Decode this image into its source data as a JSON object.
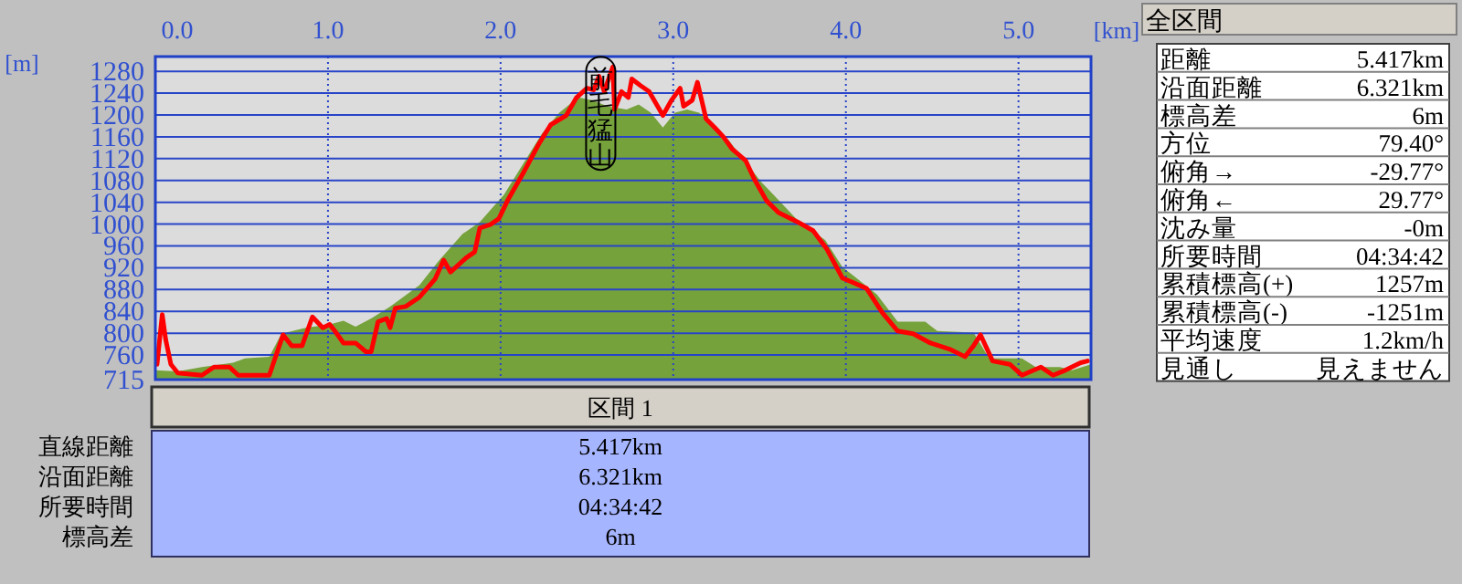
{
  "chart_data": [
    {
      "type": "area",
      "xlabel": "[km]",
      "ylabel": "[m]",
      "xlim": [
        0,
        5.42
      ],
      "ylim": [
        715,
        1307
      ],
      "xticks": [
        {
          "value": 0,
          "label": "0.0"
        },
        {
          "value": 1,
          "label": "1.0"
        },
        {
          "value": 2,
          "label": "2.0"
        },
        {
          "value": 3,
          "label": "3.0"
        },
        {
          "value": 4,
          "label": "4.0"
        },
        {
          "value": 5,
          "label": "5.0"
        }
      ],
      "yticks": [
        715,
        760,
        800,
        840,
        880,
        920,
        960,
        1000,
        1040,
        1080,
        1120,
        1160,
        1200,
        1240,
        1280
      ],
      "grid": true,
      "annotations": [
        {
          "text": "前毛猛山",
          "x": 2.58,
          "y": 1203
        }
      ],
      "series": [
        {
          "type": "area",
          "color": "#76a23c",
          "x": [
            0,
            0.13,
            0.27,
            0.45,
            0.52,
            0.66,
            0.73,
            0.87,
            1.01,
            1.09,
            1.16,
            1.25,
            1.36,
            1.53,
            1.64,
            1.78,
            1.88,
            2.02,
            2.13,
            2.24,
            2.34,
            2.45,
            2.53,
            2.62,
            2.73,
            2.8,
            2.87,
            2.94,
            3.01,
            3.08,
            3.15,
            3.22,
            3.32,
            3.51,
            3.58,
            3.73,
            3.88,
            3.98,
            4.05,
            4.18,
            4.3,
            4.46,
            4.53,
            4.74,
            4.83,
            5.02,
            5.1,
            5.24,
            5.31,
            5.42
          ],
          "values": [
            732,
            730,
            738,
            746,
            754,
            757,
            799,
            810,
            816,
            823,
            812,
            827,
            849,
            888,
            932,
            982,
            1004,
            1054,
            1110,
            1166,
            1204,
            1232,
            1227,
            1216,
            1210,
            1219,
            1204,
            1177,
            1204,
            1210,
            1204,
            1182,
            1154,
            1077,
            1054,
            1004,
            971,
            921,
            904,
            871,
            821,
            821,
            804,
            801,
            754,
            754,
            738,
            738,
            732,
            743
          ]
        },
        {
          "type": "line",
          "color": "#ff0000",
          "x": [
            0.01,
            0.04,
            0.06,
            0.09,
            0.13,
            0.27,
            0.34,
            0.43,
            0.48,
            0.66,
            0.74,
            0.79,
            0.85,
            0.91,
            0.97,
            1.01,
            1.04,
            1.09,
            1.16,
            1.22,
            1.25,
            1.29,
            1.34,
            1.36,
            1.39,
            1.45,
            1.53,
            1.62,
            1.67,
            1.71,
            1.8,
            1.85,
            1.88,
            1.94,
            1.99,
            2.04,
            2.13,
            2.22,
            2.29,
            2.38,
            2.44,
            2.5,
            2.54,
            2.57,
            2.6,
            2.65,
            2.66,
            2.7,
            2.74,
            2.76,
            2.81,
            2.86,
            2.94,
            2.99,
            3.04,
            3.06,
            3.11,
            3.14,
            3.19,
            3.24,
            3.29,
            3.34,
            3.42,
            3.47,
            3.54,
            3.61,
            3.72,
            3.81,
            3.89,
            3.98,
            4.04,
            4.12,
            4.21,
            4.3,
            4.39,
            4.49,
            4.6,
            4.69,
            4.74,
            4.78,
            4.85,
            4.95,
            5.02,
            5.13,
            5.2,
            5.27,
            5.36,
            5.4
          ],
          "values": [
            743,
            834,
            788,
            743,
            727,
            723,
            738,
            738,
            723,
            723,
            797,
            777,
            777,
            830,
            810,
            816,
            804,
            782,
            782,
            766,
            766,
            821,
            827,
            810,
            846,
            849,
            866,
            899,
            934,
            912,
            938,
            949,
            993,
            999,
            1010,
            1043,
            1093,
            1146,
            1182,
            1199,
            1232,
            1249,
            1246,
            1271,
            1243,
            1288,
            1210,
            1243,
            1232,
            1266,
            1254,
            1243,
            1199,
            1227,
            1249,
            1216,
            1227,
            1260,
            1193,
            1177,
            1160,
            1138,
            1116,
            1082,
            1043,
            1021,
            1004,
            988,
            954,
            901,
            893,
            882,
            838,
            804,
            799,
            782,
            771,
            757,
            777,
            797,
            749,
            743,
            723,
            738,
            723,
            732,
            746,
            749
          ]
        }
      ]
    },
    {
      "type": "other",
      "title": "全区間",
      "annotations": [
        "距離",
        "5.417km",
        "沿面距離",
        "6.321km",
        "標高差",
        "6m",
        "方位",
        "79.40°",
        "俯角→",
        "-29.77°",
        "俯角←",
        "29.77°",
        "沈み量",
        "-0m",
        "所要時間",
        "04:34:42",
        "累積標高(+)",
        "1257m",
        "累積標高(-)",
        "-1251m",
        "平均速度",
        "1.2km/h",
        "見通し",
        "見えません"
      ]
    },
    {
      "type": "other",
      "title": "区間 1",
      "annotations": [
        "直線距離",
        "5.417km",
        "沿面距離",
        "6.321km",
        "所要時間",
        "04:34:42",
        "標高差",
        "6m"
      ]
    }
  ]
}
